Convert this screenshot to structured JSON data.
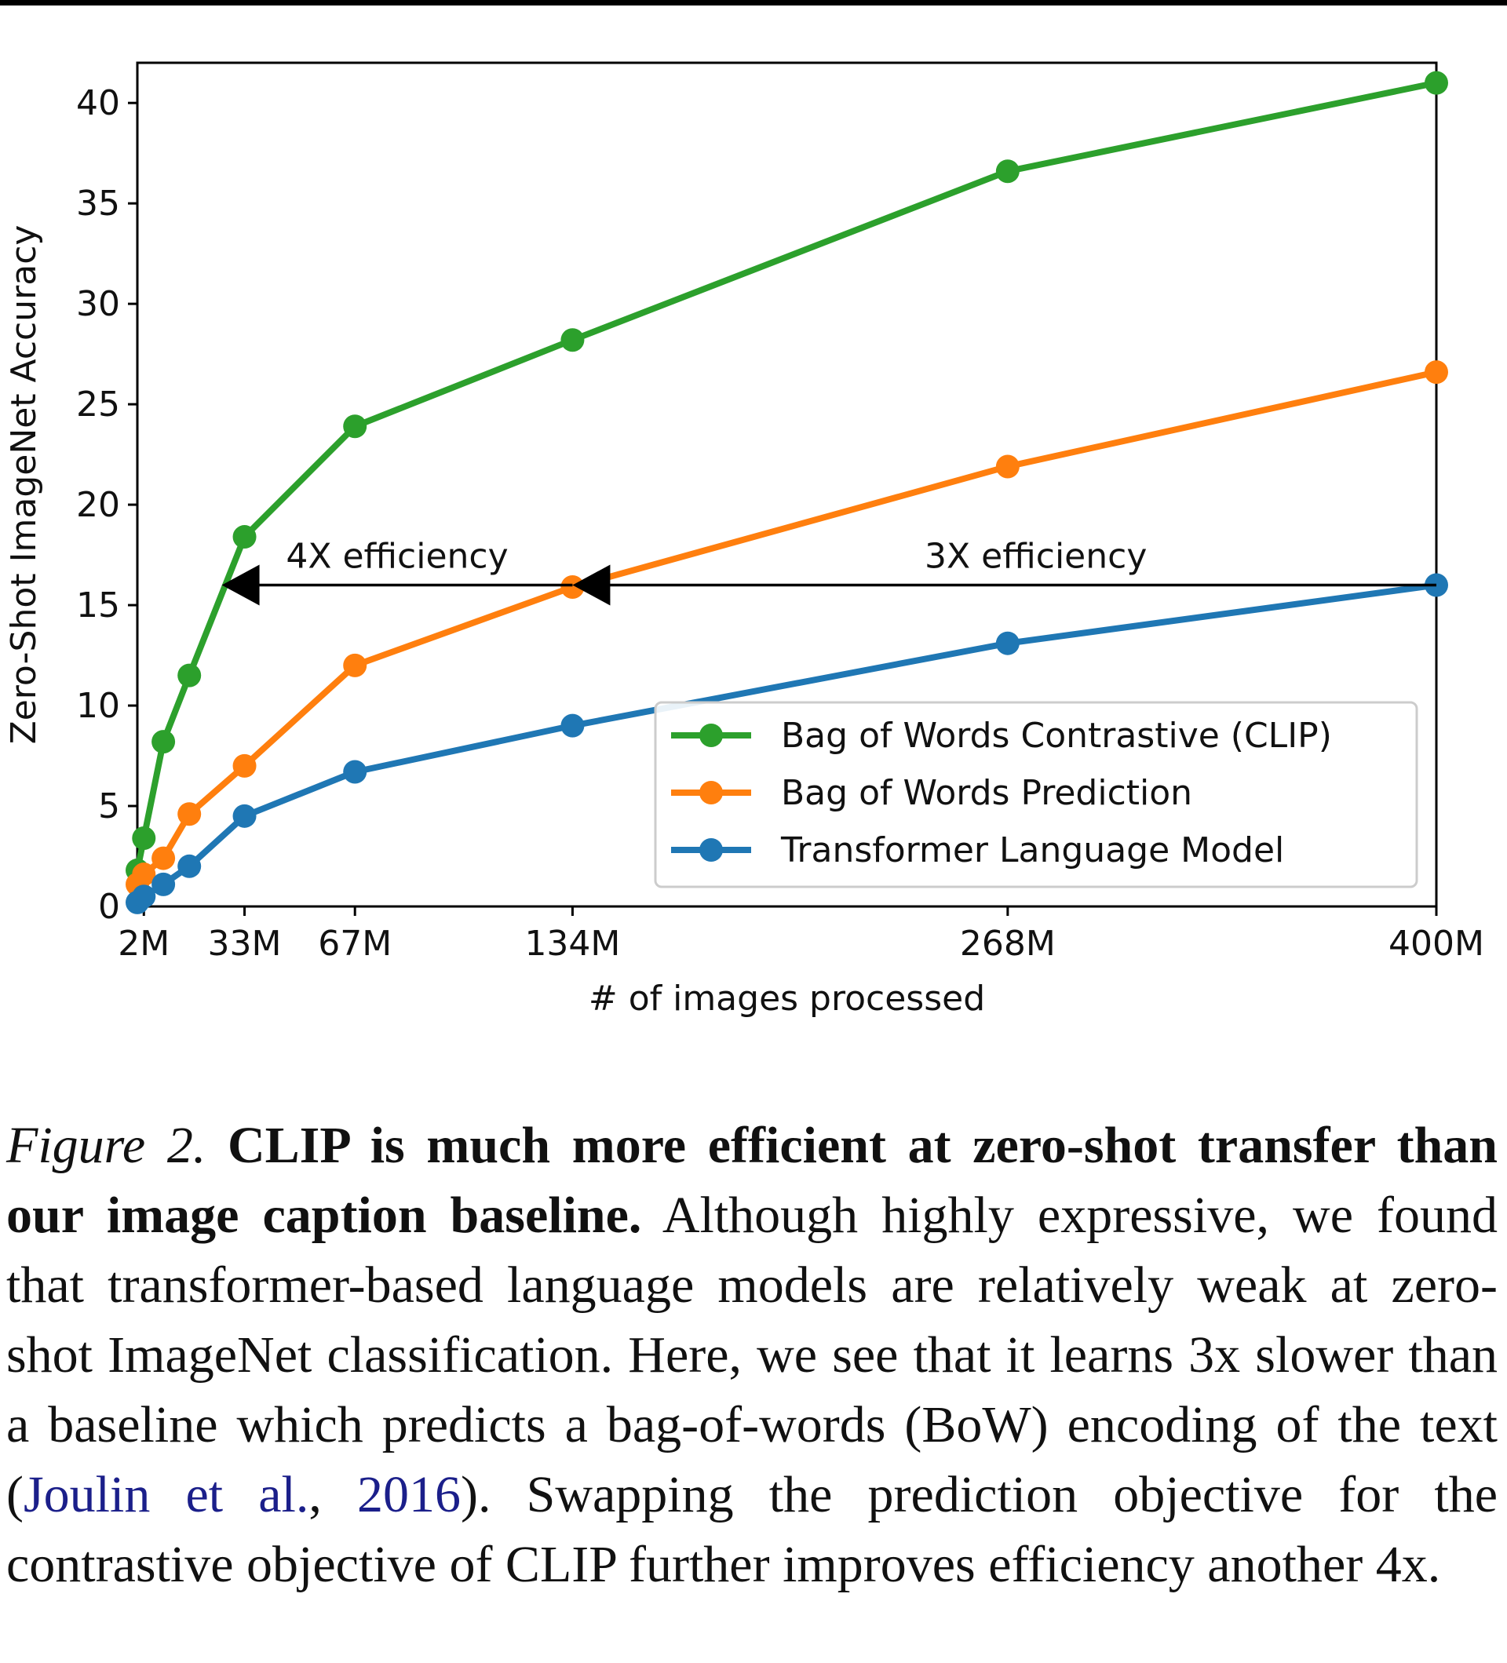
{
  "chart_data": {
    "type": "line",
    "xlabel": "# of images processed",
    "ylabel": "Zero-Shot ImageNet Accuracy",
    "xlim": [
      0,
      400
    ],
    "ylim": [
      0,
      42
    ],
    "x_ticks": [
      2,
      33,
      67,
      134,
      268,
      400
    ],
    "x_tick_labels": [
      "2M",
      "33M",
      "67M",
      "134M",
      "268M",
      "400M"
    ],
    "y_ticks": [
      0,
      5,
      10,
      15,
      20,
      25,
      30,
      35,
      40
    ],
    "y_tick_labels": [
      "0",
      "5",
      "10",
      "15",
      "20",
      "25",
      "30",
      "35",
      "40"
    ],
    "grid": false,
    "legend_position": "bottom-right",
    "series": [
      {
        "name": "Bag of Words Contrastive (CLIP)",
        "color": "#2ca02c",
        "x": [
          0,
          2,
          8,
          16,
          33,
          67,
          134,
          268,
          400
        ],
        "y": [
          1.8,
          3.4,
          8.2,
          11.5,
          18.4,
          23.9,
          28.2,
          36.6,
          41.0
        ]
      },
      {
        "name": "Bag of Words Prediction",
        "color": "#ff7f0e",
        "x": [
          0,
          2,
          8,
          16,
          33,
          67,
          134,
          268,
          400
        ],
        "y": [
          1.1,
          1.6,
          2.4,
          4.6,
          7.0,
          12.0,
          15.9,
          21.9,
          26.6
        ]
      },
      {
        "name": "Transformer Language Model",
        "color": "#1f77b4",
        "x": [
          0,
          2,
          8,
          16,
          33,
          67,
          134,
          268,
          400
        ],
        "y": [
          0.2,
          0.5,
          1.1,
          2.0,
          4.5,
          6.7,
          9.0,
          13.1,
          16.0
        ]
      }
    ],
    "annotations": [
      {
        "text": "4X efficiency",
        "arrow_from": [
          134,
          16
        ],
        "arrow_to": [
          26,
          16
        ]
      },
      {
        "text": "3X efficiency",
        "arrow_from": [
          400,
          16
        ],
        "arrow_to": [
          134,
          16
        ]
      }
    ]
  },
  "caption": {
    "figure_label": "Figure 2.",
    "bold_text": "CLIP is much more efficient at zero-shot transfer than our image caption baseline.",
    "body_1": "Although highly expressive, we found that transformer-based language models are relatively weak at zero-shot ImageNet classification. Here, we see that it learns 3x slower than a baseline which predicts a bag-of-words (BoW) encoding of the text (",
    "cite_authors": "Joulin et al.",
    "cite_sep": ", ",
    "cite_year": "2016",
    "body_2": "). Swapping the prediction objective for the contrastive objective of CLIP further improves efficiency another 4x."
  }
}
